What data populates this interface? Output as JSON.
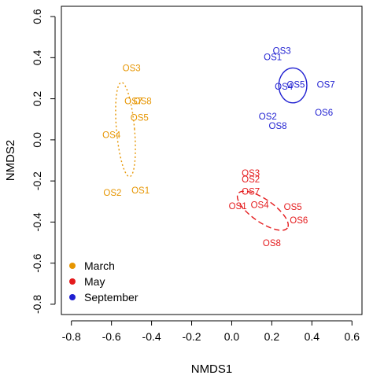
{
  "chart_data": {
    "type": "scatter",
    "title": "",
    "xlabel": "NMDS1",
    "ylabel": "NMDS2",
    "xlim": [
      -0.85,
      0.65
    ],
    "ylim": [
      -0.85,
      0.65
    ],
    "xticks": [
      -0.8,
      -0.6,
      -0.4,
      -0.2,
      0.0,
      0.2,
      0.4,
      0.6
    ],
    "yticks": [
      -0.8,
      -0.6,
      -0.4,
      -0.2,
      0.0,
      0.2,
      0.4,
      0.6
    ],
    "xtick_labels": [
      "-0.8",
      "-0.6",
      "-0.4",
      "-0.2",
      "0.0",
      "0.2",
      "0.4",
      "0.6"
    ],
    "ytick_labels": [
      "-0.8",
      "-0.6",
      "-0.4",
      "-0.2",
      "0.0",
      "0.2",
      "0.4",
      "0.6"
    ],
    "grid": false,
    "legend": {
      "placement": "bottom-left"
    },
    "series": [
      {
        "name": "March",
        "color": "#e69500",
        "ellipse": {
          "cx": -0.53,
          "cy": 0.05,
          "rx": 0.045,
          "ry": 0.23,
          "angle": 5,
          "style": "dotted"
        },
        "points": [
          {
            "label": "OS3",
            "x": -0.5,
            "y": 0.345
          },
          {
            "label": "OS7",
            "x": -0.49,
            "y": 0.185
          },
          {
            "label": "OS8",
            "x": -0.445,
            "y": 0.185
          },
          {
            "label": "OS5",
            "x": -0.46,
            "y": 0.105
          },
          {
            "label": "OS4",
            "x": -0.6,
            "y": 0.02
          },
          {
            "label": "OS2",
            "x": -0.595,
            "y": -0.26
          },
          {
            "label": "OS1",
            "x": -0.455,
            "y": -0.25
          }
        ]
      },
      {
        "name": "May",
        "color": "#e41a1c",
        "ellipse": {
          "cx": 0.155,
          "cy": -0.345,
          "rx": 0.15,
          "ry": 0.055,
          "angle": -35,
          "style": "dashed"
        },
        "points": [
          {
            "label": "OS3",
            "x": 0.095,
            "y": -0.165
          },
          {
            "label": "OS2",
            "x": 0.095,
            "y": -0.195
          },
          {
            "label": "OS7",
            "x": 0.095,
            "y": -0.255
          },
          {
            "label": "OS1",
            "x": 0.03,
            "y": -0.325
          },
          {
            "label": "OS4",
            "x": 0.14,
            "y": -0.32
          },
          {
            "label": "OS5",
            "x": 0.305,
            "y": -0.33
          },
          {
            "label": "OS6",
            "x": 0.335,
            "y": -0.395
          },
          {
            "label": "OS8",
            "x": 0.2,
            "y": -0.505
          }
        ]
      },
      {
        "name": "September",
        "color": "#1f1fd1",
        "ellipse": {
          "cx": 0.305,
          "cy": 0.265,
          "rx": 0.07,
          "ry": 0.085,
          "angle": 0,
          "style": "solid"
        },
        "points": [
          {
            "label": "OS3",
            "x": 0.25,
            "y": 0.43
          },
          {
            "label": "OS1",
            "x": 0.205,
            "y": 0.4
          },
          {
            "label": "OS4",
            "x": 0.26,
            "y": 0.255
          },
          {
            "label": "OS5",
            "x": 0.32,
            "y": 0.265
          },
          {
            "label": "OS7",
            "x": 0.47,
            "y": 0.265
          },
          {
            "label": "OS6",
            "x": 0.46,
            "y": 0.13
          },
          {
            "label": "OS2",
            "x": 0.18,
            "y": 0.11
          },
          {
            "label": "OS8",
            "x": 0.23,
            "y": 0.065
          }
        ]
      }
    ]
  }
}
